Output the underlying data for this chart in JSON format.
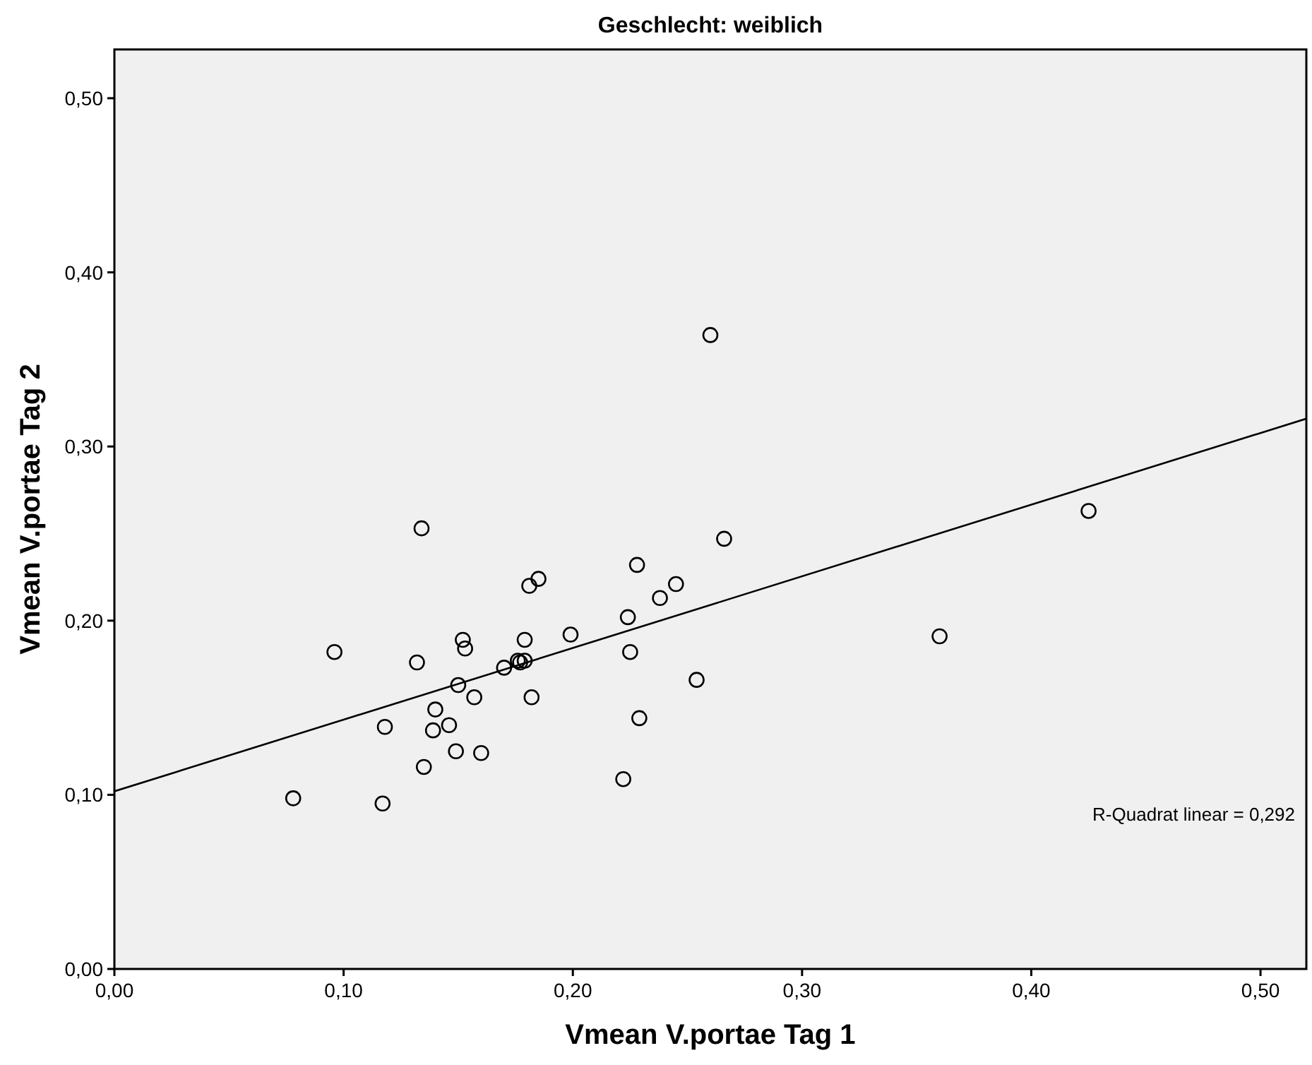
{
  "chart_data": {
    "type": "scatter",
    "title": "Geschlecht: weiblich",
    "xlabel": "Vmean V.portae Tag 1",
    "ylabel": "Vmean V.portae Tag 2",
    "xlim": [
      0,
      0.52
    ],
    "ylim": [
      0,
      0.528
    ],
    "xticks": [
      {
        "value": 0,
        "label": "0,00"
      },
      {
        "value": 0.1,
        "label": "0,10"
      },
      {
        "value": 0.2,
        "label": "0,20"
      },
      {
        "value": 0.3,
        "label": "0,30"
      },
      {
        "value": 0.4,
        "label": "0,40"
      },
      {
        "value": 0.5,
        "label": "0,50"
      }
    ],
    "yticks": [
      {
        "value": 0,
        "label": "0,00"
      },
      {
        "value": 0.1,
        "label": "0,10"
      },
      {
        "value": 0.2,
        "label": "0,20"
      },
      {
        "value": 0.3,
        "label": "0,30"
      },
      {
        "value": 0.4,
        "label": "0,40"
      },
      {
        "value": 0.5,
        "label": "0,50"
      }
    ],
    "grid": false,
    "annotations": [
      "R-Quadrat linear = 0,292"
    ],
    "series": [
      {
        "color": "#000000",
        "marker": "circle",
        "x": [
          0.134,
          0.266,
          0.228,
          0.185,
          0.181,
          0.245,
          0.238,
          0.224,
          0.096,
          0.152,
          0.153,
          0.132,
          0.179,
          0.199,
          0.225,
          0.17,
          0.176,
          0.177,
          0.179,
          0.15,
          0.157,
          0.182,
          0.254,
          0.14,
          0.118,
          0.146,
          0.139,
          0.229,
          0.149,
          0.16,
          0.135,
          0.222,
          0.078,
          0.117,
          0.26,
          0.36,
          0.425
        ],
        "values": [
          0.253,
          0.247,
          0.232,
          0.224,
          0.22,
          0.221,
          0.213,
          0.202,
          0.182,
          0.189,
          0.184,
          0.176,
          0.189,
          0.192,
          0.182,
          0.173,
          0.177,
          0.176,
          0.177,
          0.163,
          0.156,
          0.156,
          0.166,
          0.149,
          0.139,
          0.14,
          0.137,
          0.144,
          0.125,
          0.124,
          0.116,
          0.109,
          0.098,
          0.095,
          0.364,
          0.191,
          0.263
        ]
      },
      {
        "type": "line",
        "color": "#000000",
        "marker": "none",
        "line_style": "solid",
        "x": [
          0,
          0.52
        ],
        "values": [
          0.102,
          0.316
        ]
      }
    ]
  }
}
